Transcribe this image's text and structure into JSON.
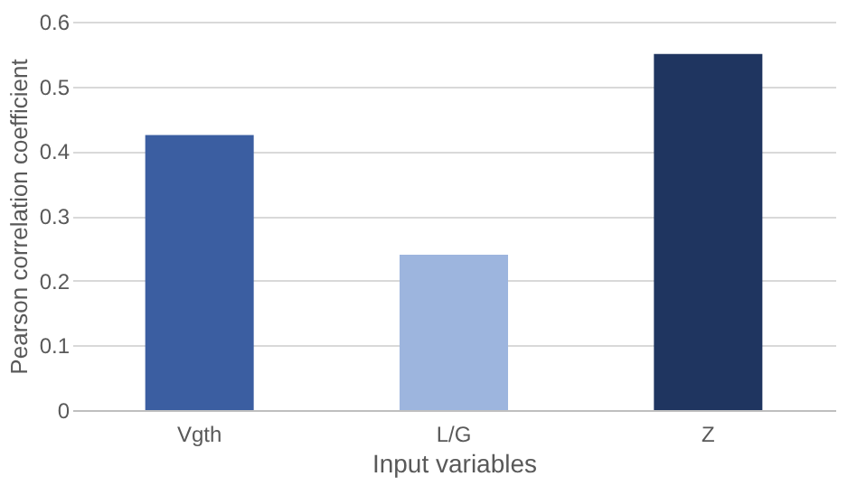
{
  "chart_data": {
    "type": "bar",
    "xlabel": "Input variables",
    "ylabel": "Pearson correlation coefficient",
    "categories": [
      "Vgth",
      "L/G",
      "Z"
    ],
    "values": [
      0.425,
      0.24,
      0.55
    ],
    "colors": [
      "#3b5ea1",
      "#9db5de",
      "#1f3560"
    ],
    "ylim": [
      0,
      0.6
    ],
    "yticks": [
      0,
      0.1,
      0.2,
      0.3,
      0.4,
      0.5,
      0.6
    ],
    "grid": "y"
  }
}
